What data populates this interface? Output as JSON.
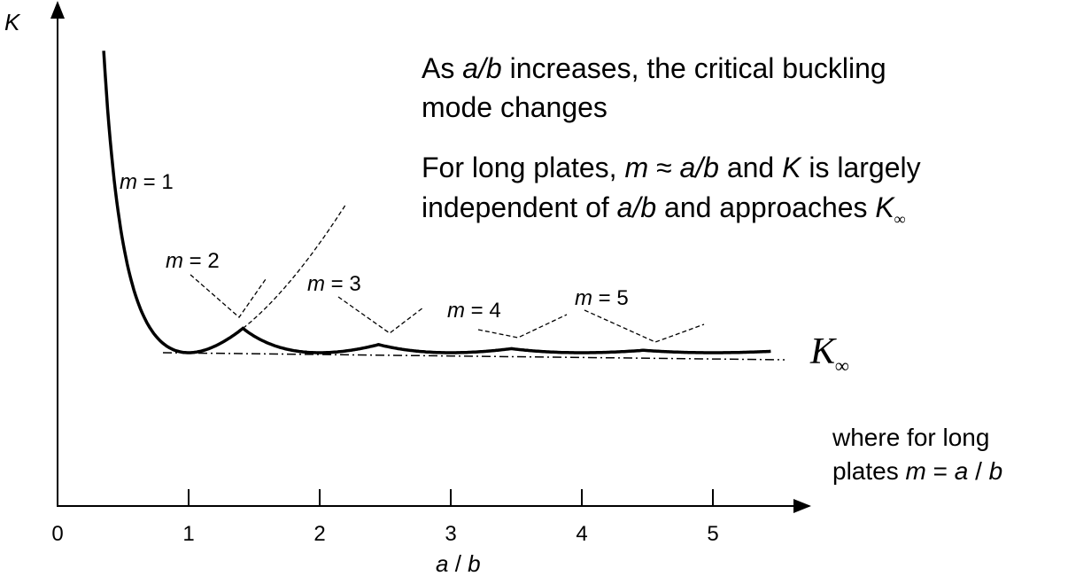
{
  "y_axis": {
    "label": "K"
  },
  "x_axis": {
    "label": [
      "a",
      " / ",
      "b"
    ],
    "ticks": [
      0,
      1,
      2,
      3,
      4,
      5
    ]
  },
  "mode_labels": [
    [
      "m",
      " = 1"
    ],
    [
      "m",
      " = 2"
    ],
    [
      "m",
      " = 3"
    ],
    [
      "m",
      " = 4"
    ],
    [
      "m",
      " = 5"
    ]
  ],
  "asymptote_label": {
    "main": "K",
    "sub": "∞"
  },
  "notes": [
    [
      "As ",
      "a/b",
      " increases, the critical buckling",
      "mode changes"
    ],
    [
      "For long plates, ",
      "m",
      " ≈ ",
      "a/b",
      " and ",
      "K",
      " is largely",
      "independent of ",
      "a/b",
      " and approaches ",
      "K",
      "∞"
    ],
    [
      "where for long",
      "plates ",
      "m",
      " = ",
      "a",
      " / ",
      "b"
    ]
  ]
}
